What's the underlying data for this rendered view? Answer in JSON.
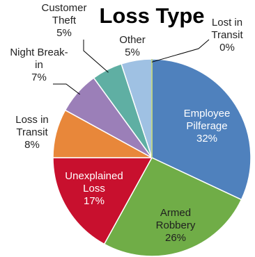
{
  "chart_data": {
    "type": "pie",
    "title": "Loss Type",
    "slices": [
      {
        "label": "Employee Pilferage",
        "value": 32,
        "value_label": "32%",
        "color": "#4f81bd",
        "label_color": "#ffffff"
      },
      {
        "label": "Armed Robbery",
        "value": 26,
        "value_label": "26%",
        "color": "#70ad47",
        "label_color": "#1f1f1f"
      },
      {
        "label": "Unexplained Loss",
        "value": 17,
        "value_label": "17%",
        "color": "#c8102e",
        "label_color": "#ffffff"
      },
      {
        "label": "Loss in Transit",
        "value": 8,
        "value_label": "8%",
        "color": "#e8873a",
        "label_color": "#222222"
      },
      {
        "label": "Night Break-in",
        "value": 7,
        "value_label": "7%",
        "color": "#9b7fb8",
        "label_color": "#222222"
      },
      {
        "label": "Customer Theft",
        "value": 5,
        "value_label": "5%",
        "color": "#5fafa3",
        "label_color": "#222222"
      },
      {
        "label": "Other",
        "value": 5,
        "value_label": "5%",
        "color": "#9fc1e3",
        "label_color": "#222222"
      },
      {
        "label": "Lost in Transit",
        "value": 0,
        "value_label": "0%",
        "color": "#b5cc6a",
        "label_color": "#222222"
      }
    ]
  }
}
